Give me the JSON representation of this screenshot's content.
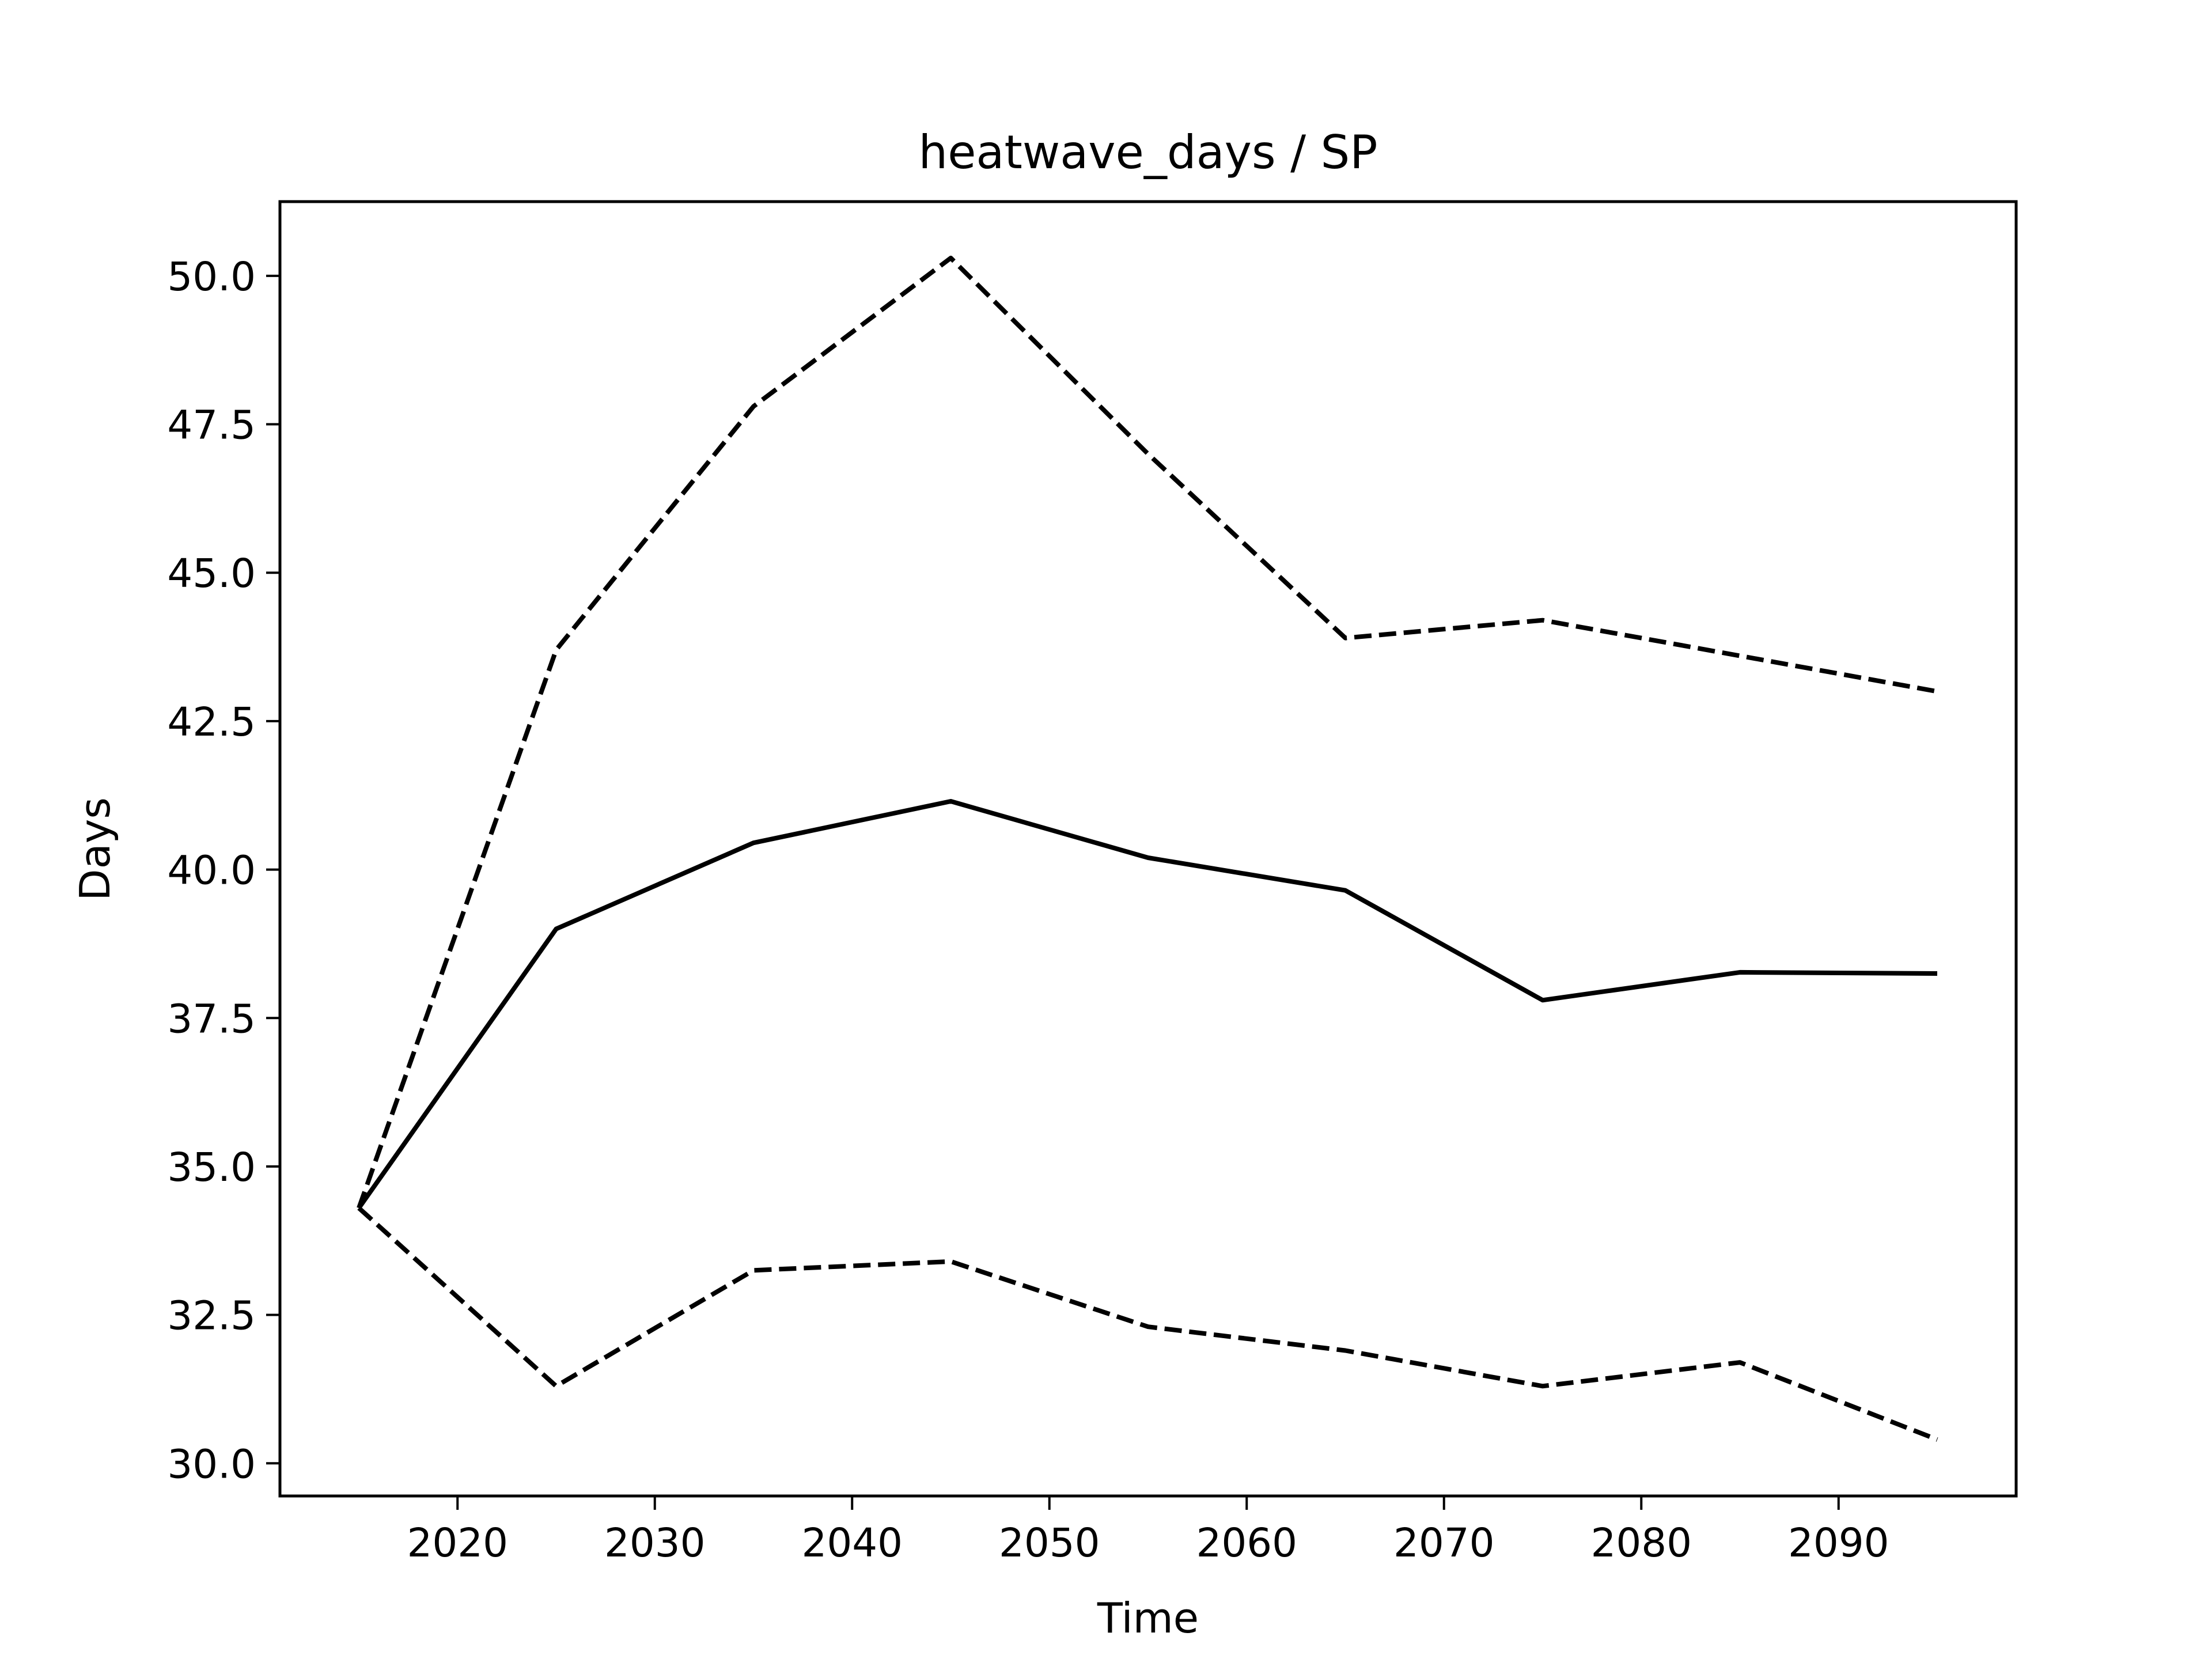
{
  "chart_data": {
    "type": "line",
    "title": "heatwave_days / SP",
    "xlabel": "Time",
    "ylabel": "Days",
    "x": [
      2015,
      2025,
      2035,
      2045,
      2055,
      2065,
      2075,
      2085,
      2095
    ],
    "series": [
      {
        "style": "solid",
        "values": [
          34.3,
          39.0,
          40.45,
          41.15,
          40.2,
          39.65,
          37.8,
          38.27,
          38.25
        ]
      },
      {
        "style": "dashed",
        "values": [
          34.3,
          43.7,
          47.8,
          50.3,
          47.0,
          43.9,
          44.2,
          43.6,
          43.0
        ]
      },
      {
        "style": "dashed",
        "values": [
          34.3,
          31.3,
          33.25,
          33.4,
          32.3,
          31.9,
          31.3,
          31.7,
          30.4
        ]
      }
    ],
    "xlim": [
      2011,
      2099
    ],
    "ylim": [
      29.45,
      51.25
    ],
    "xticks": [
      2020,
      2030,
      2040,
      2050,
      2060,
      2070,
      2080,
      2090
    ],
    "yticks": [
      30.0,
      32.5,
      35.0,
      37.5,
      40.0,
      42.5,
      45.0,
      47.5,
      50.0
    ],
    "ytick_labels": [
      "30.0",
      "32.5",
      "35.0",
      "37.5",
      "40.0",
      "42.5",
      "45.0",
      "47.5",
      "50.0"
    ],
    "line_color": "#000000",
    "grid": false,
    "legend": "none"
  }
}
